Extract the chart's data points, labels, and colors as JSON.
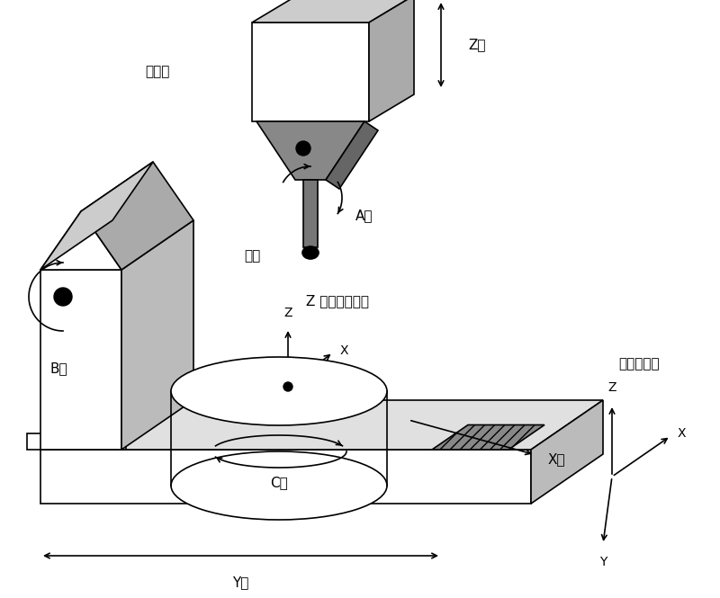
{
  "bg_color": "#ffffff",
  "line_color": "#000000",
  "labels": {
    "tool_head": "刃具头",
    "tool": "刃具",
    "z_axis": "Z轴",
    "a_axis": "A轴",
    "b_axis": "B轴",
    "c_axis": "C轴",
    "x_axis": "X轴",
    "y_axis": "Y轴",
    "worktable_coord": "Z 工作台坐标系",
    "device_coord": "设备坐标系",
    "x_label": "X",
    "y_label": "Y",
    "z_label": "Z"
  },
  "font_size_large": 13,
  "font_size_medium": 11,
  "font_size_small": 10
}
